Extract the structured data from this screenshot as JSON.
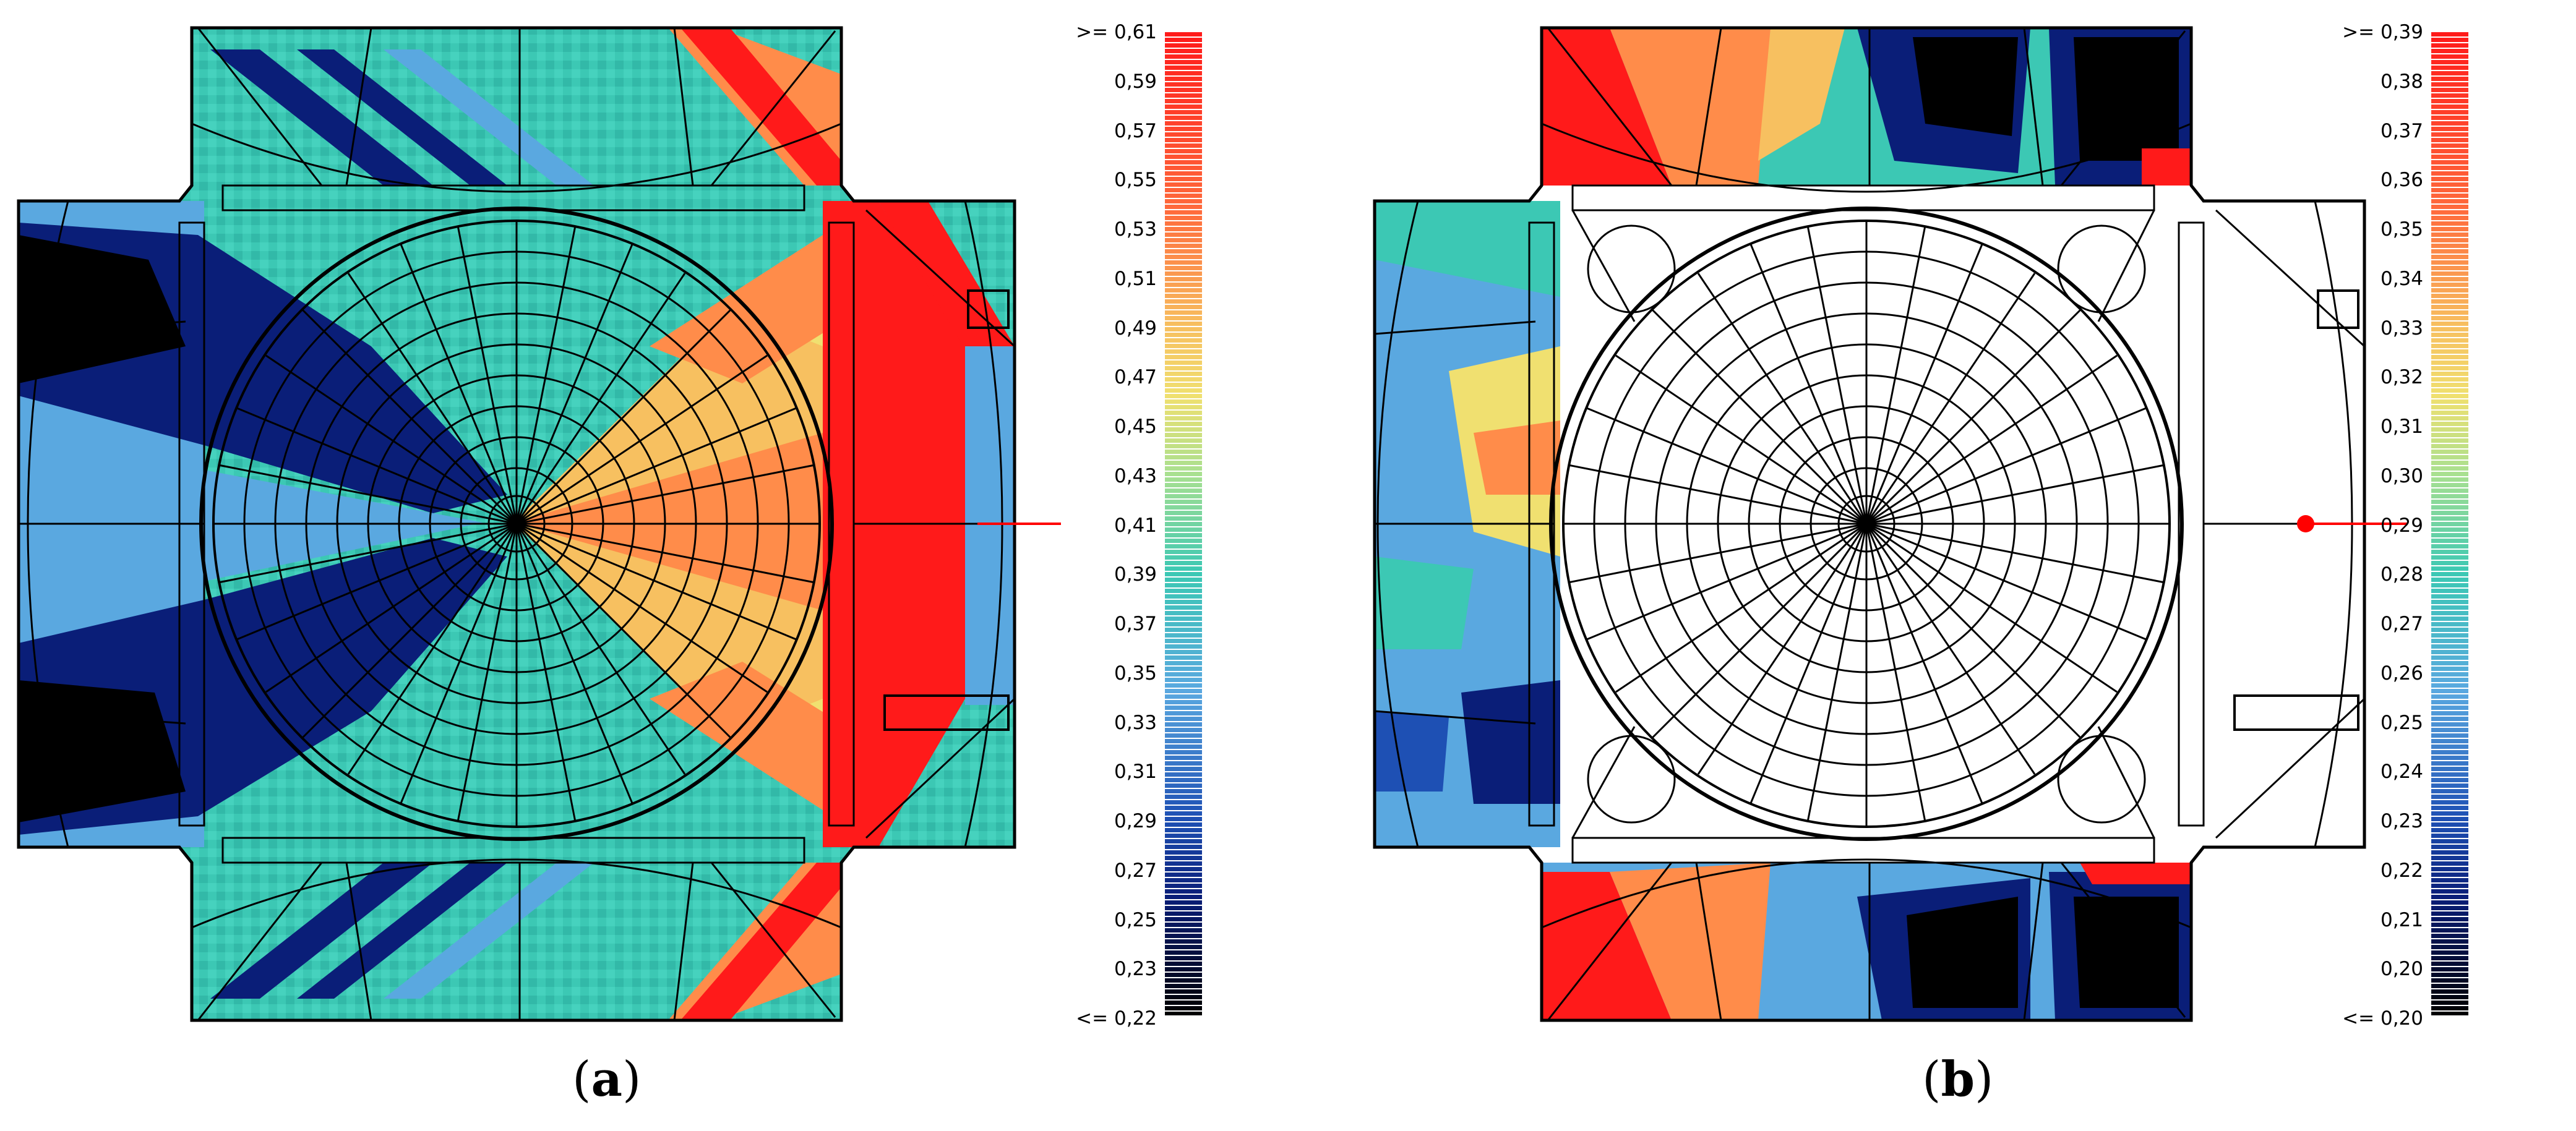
{
  "figure": {
    "panel_a": {
      "caption_letter": "a",
      "legend": {
        "top_label": ">= 0,61",
        "bottom_label": "<= 0,22",
        "tick_labels": [
          "0,59",
          "0,57",
          "0,55",
          "0,53",
          "0,51",
          "0,49",
          "0,47",
          "0,45",
          "0,43",
          "0,41",
          "0,39",
          "0,37",
          "0,35",
          "0,33",
          "0,31",
          "0,29",
          "0,27",
          "0,25",
          "0,23"
        ]
      }
    },
    "panel_b": {
      "caption_letter": "b",
      "legend": {
        "top_label": ">= 0,39",
        "bottom_label": "<= 0,20",
        "tick_labels": [
          "0,38",
          "0,37",
          "0,36",
          "0,35",
          "0,34",
          "0,33",
          "0,32",
          "0,31",
          "0,30",
          "0,29",
          "0,28",
          "0,27",
          "0,26",
          "0,25",
          "0,24",
          "0,23",
          "0,22",
          "0,21",
          "0,20"
        ]
      }
    }
  },
  "colors": {
    "scale_high": "#ff1a1a",
    "scale_mid": "#3cc8b4",
    "scale_low": "#000000",
    "mesh_line": "#000000",
    "axis_marker": "#ff0000"
  }
}
